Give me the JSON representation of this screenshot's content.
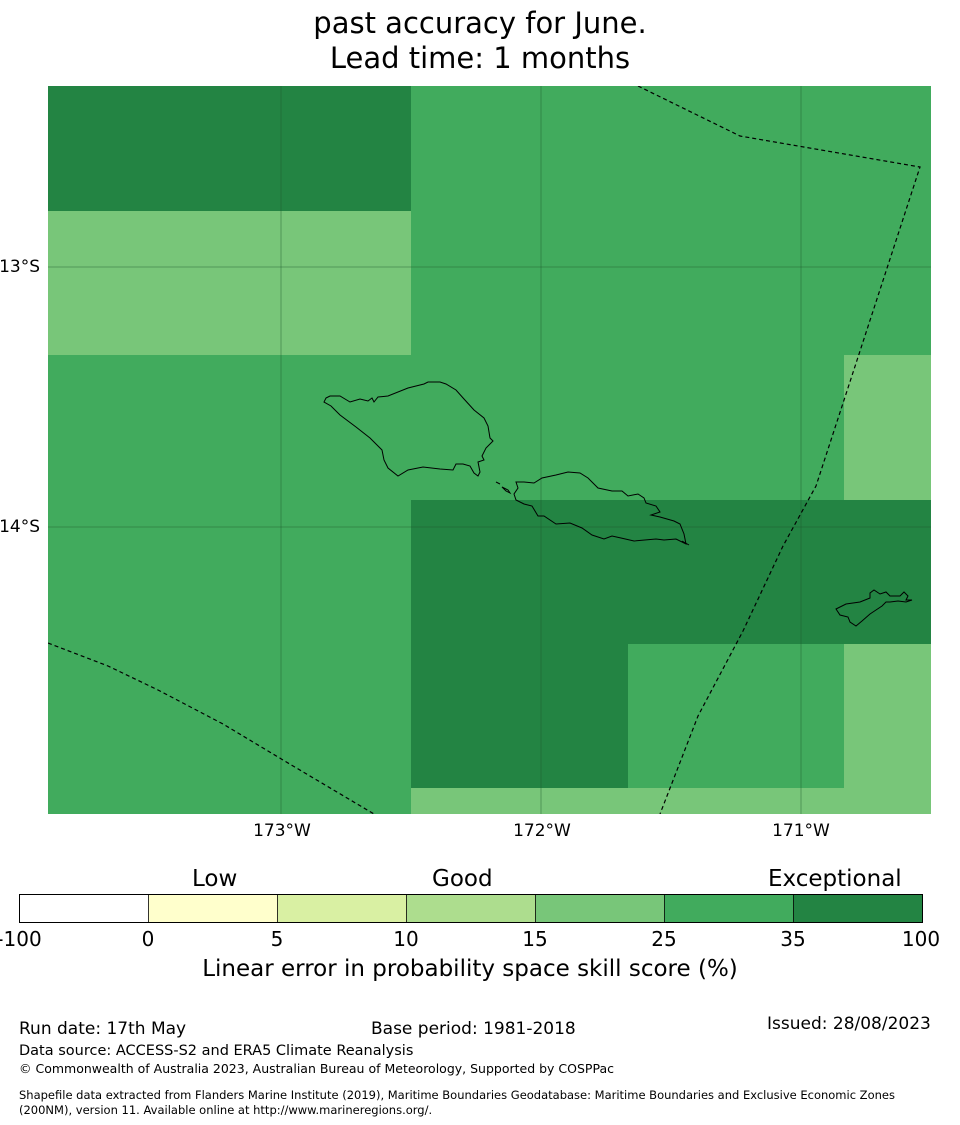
{
  "title": {
    "line2": "past accuracy for June.",
    "line3": "Lead time: 1 months"
  },
  "map": {
    "lat_labels": [
      "13°S",
      "14°S"
    ],
    "lon_labels": [
      "173°W",
      "172°W",
      "171°W"
    ],
    "colors": {
      "skill_35_100": "#238443",
      "skill_25_35": "#41ab5d",
      "skill_15_25": "#78c679"
    }
  },
  "colorbar": {
    "category_labels": [
      "Low",
      "Good",
      "Exceptional"
    ],
    "ticks": [
      "-100",
      "0",
      "5",
      "10",
      "15",
      "25",
      "35",
      "100"
    ],
    "colors": [
      "#ffffff",
      "#ffffcc",
      "#d9f0a3",
      "#addd8e",
      "#78c679",
      "#41ab5d",
      "#238443"
    ],
    "title": "Linear error in probability space skill score (%)"
  },
  "footer": {
    "run_date": "Run date: 17th May",
    "base_period": "Base period: 1981-2018",
    "issued": "Issued: 28/08/2023",
    "data_source": "Data source: ACCESS-S2 and ERA5 Climate Reanalysis",
    "copyright": "© Commonwealth of Australia 2023, Australian Bureau of Meteorology, Supported by COSPPac",
    "shapefile_line1": "Shapefile data extracted from Flanders Marine Institute (2019), Maritime Boundaries Geodatabase: Maritime Boundaries and Exclusive Economic Zones",
    "shapefile_line2": "(200NM), version 11. Available online at http://www.marineregions.org/."
  }
}
